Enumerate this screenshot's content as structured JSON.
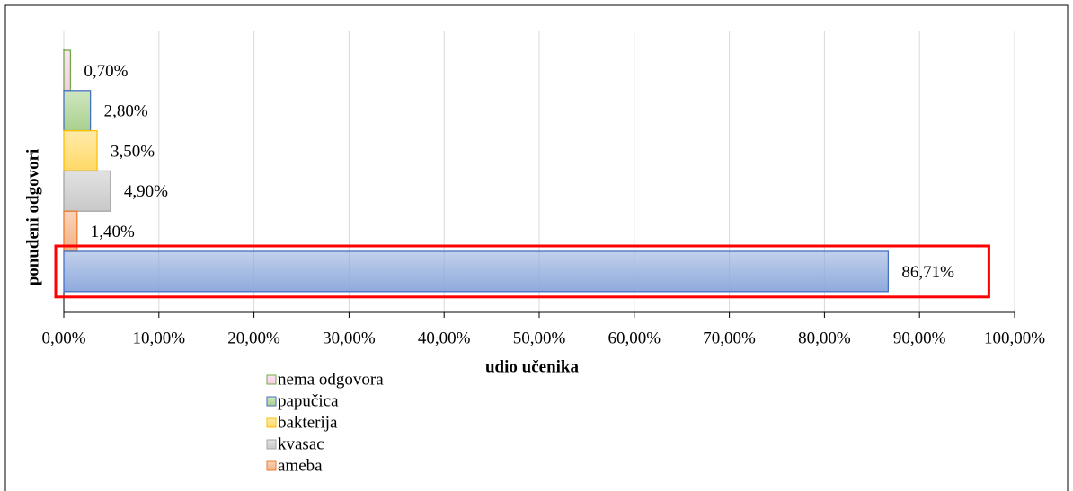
{
  "chart_data": {
    "type": "bar",
    "orientation": "horizontal",
    "x_label": "udio učenika",
    "y_label": "ponudeni odgovori",
    "series": [
      {
        "name": "nema odgovora",
        "color": "#f8cbe8",
        "border": "#70ad47",
        "values": [
          0.7
        ],
        "value_labels": [
          "0,70%"
        ]
      },
      {
        "name": "papučica",
        "color": "#a9d18e",
        "border": "#4472c4",
        "values": [
          2.8
        ],
        "value_labels": [
          "2,80%"
        ]
      },
      {
        "name": "bakterija",
        "color": "#ffd966",
        "border": "#ffc000",
        "values": [
          3.5
        ],
        "value_labels": [
          "3,50%"
        ]
      },
      {
        "name": "kvasac",
        "color": "#c9c9c9",
        "border": "#a5a5a5",
        "values": [
          4.9
        ],
        "value_labels": [
          "4,90%"
        ]
      },
      {
        "name": "ameba",
        "color": "#f4b183",
        "border": "#ed7d31",
        "values": [
          1.4
        ],
        "value_labels": [
          "1,40%"
        ]
      },
      {
        "name": null,
        "color": "#8faadc",
        "border": "#4472c4",
        "values": [
          86.71
        ],
        "value_labels": [
          "86,71%"
        ]
      }
    ],
    "xlim": [
      0,
      100
    ],
    "xticks": [
      {
        "value": 0,
        "label": "0,00%"
      },
      {
        "value": 10,
        "label": "10,00%"
      },
      {
        "value": 20,
        "label": "20,00%"
      },
      {
        "value": 30,
        "label": "30,00%"
      },
      {
        "value": 40,
        "label": "40,00%"
      },
      {
        "value": 50,
        "label": "50,00%"
      },
      {
        "value": 60,
        "label": "60,00%"
      },
      {
        "value": 70,
        "label": "70,00%"
      },
      {
        "value": 80,
        "label": "80,00%"
      },
      {
        "value": 90,
        "label": "90,00%"
      },
      {
        "value": 100,
        "label": "100,00%"
      }
    ],
    "grid": true,
    "highlight_color": "#ff0000"
  }
}
